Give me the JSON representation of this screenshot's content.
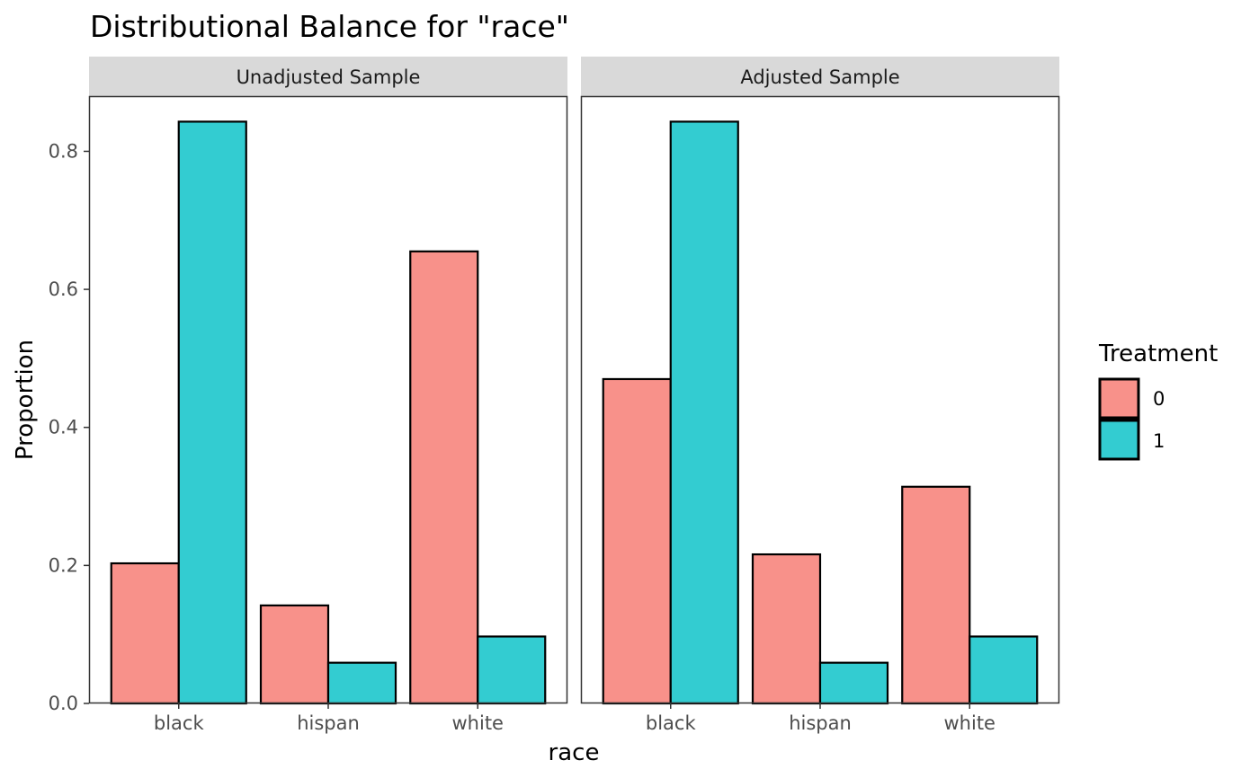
{
  "chart_data": {
    "type": "bar",
    "title": "Distributional Balance for \"race\"",
    "xlabel": "race",
    "ylabel": "Proportion",
    "ylim": [
      0,
      0.88
    ],
    "yticks": [
      "0.0",
      "0.2",
      "0.4",
      "0.6",
      "0.8"
    ],
    "categories": [
      "black",
      "hispan",
      "white"
    ],
    "legend": {
      "title": "Treatment",
      "position": "right",
      "entries": [
        {
          "label": "0",
          "color": "#F8918A"
        },
        {
          "label": "1",
          "color": "#33CCD1"
        }
      ]
    },
    "panels": [
      {
        "name": "Unadjusted Sample",
        "series": [
          {
            "group": "0",
            "values": [
              0.203,
              0.142,
              0.655
            ]
          },
          {
            "group": "1",
            "values": [
              0.843,
              0.059,
              0.097
            ]
          }
        ]
      },
      {
        "name": "Adjusted Sample",
        "series": [
          {
            "group": "0",
            "values": [
              0.47,
              0.216,
              0.314
            ]
          },
          {
            "group": "1",
            "values": [
              0.843,
              0.059,
              0.097
            ]
          }
        ]
      }
    ],
    "grid": false
  }
}
